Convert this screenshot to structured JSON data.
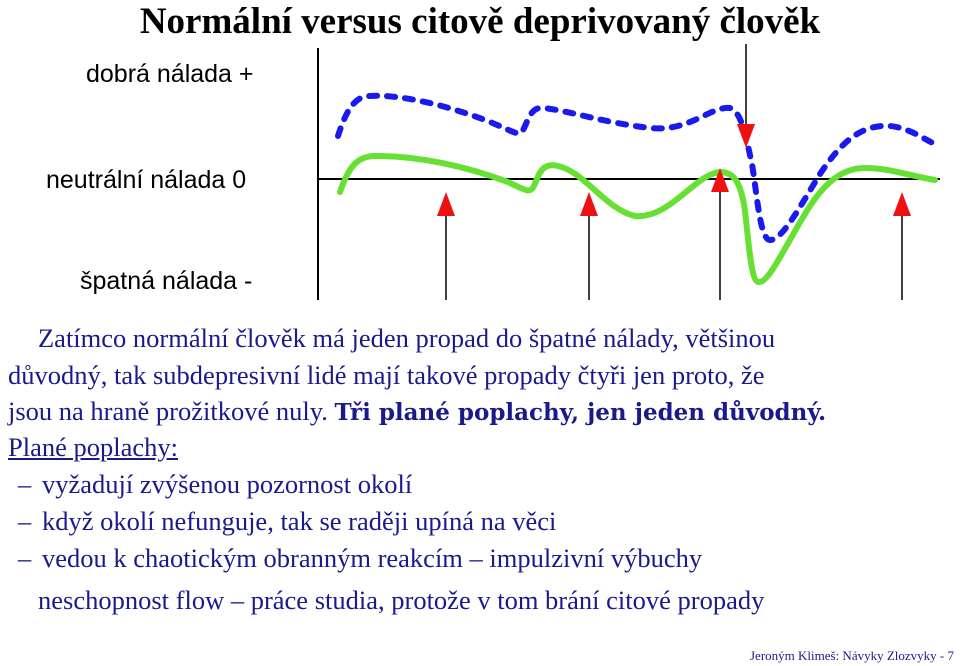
{
  "title": "Normální versus citově deprivovaný člověk",
  "diagram": {
    "labels": {
      "good": "dobrá nálada +",
      "neutral": "neutrální nálada 0",
      "bad": "špatná nálada -"
    },
    "colors": {
      "normal_line": "#66e033",
      "deprived_line": "#1a1aee",
      "arrows": "#ee1111",
      "axis": "#000000"
    }
  },
  "text": {
    "line1": "Zatímco normální člověk má jeden propad do špatné nálady, většinou",
    "line2": "důvodný, tak subdepresivní lidé mají takové propady čtyři jen proto, že",
    "line3_a": "jsou na hraně prožitkové nuly. ",
    "line3_b": "Tři plané poplachy, jen jeden důvodný.",
    "heading": "Plané poplachy:",
    "bullets": [
      "vyžadují zvýšenou pozornost okolí",
      "když okolí nefunguje, tak se raději upíná na věci",
      "vedou k chaotickým obranným reakcím – impulzivní výbuchy"
    ],
    "bullet_dash": "–",
    "line_last": "neschopnost flow – práce studia, protože v tom brání citové propady"
  },
  "footer": "Jeroným Klimeš: Návyky Zlozvyky - 7"
}
